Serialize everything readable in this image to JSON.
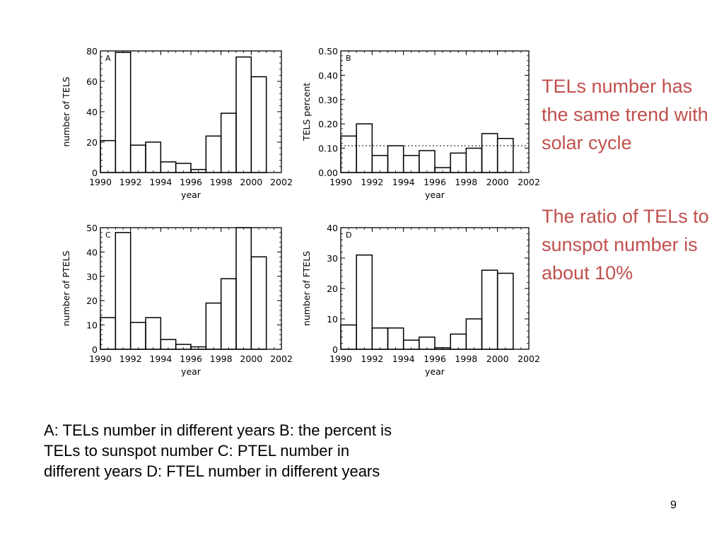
{
  "chart_data": [
    {
      "type": "bar",
      "panel": "A",
      "x": [
        1990.5,
        1991.5,
        1992.5,
        1993.5,
        1994.5,
        1995.5,
        1996.5,
        1997.5,
        1998.5,
        1999.5,
        2000.5,
        2001.5
      ],
      "values": [
        21,
        79,
        18,
        20,
        7,
        6,
        2,
        24,
        39,
        76,
        63,
        null
      ],
      "ylabel": "number of TELS",
      "xlabel": "year",
      "xlim": [
        1990,
        2002
      ],
      "ylim": [
        0,
        80
      ],
      "xticks": [
        "1990",
        "1992",
        "1994",
        "1996",
        "1998",
        "2000",
        "2002"
      ],
      "yticks": [
        "0",
        "20",
        "40",
        "60",
        "80"
      ],
      "grid": false
    },
    {
      "type": "bar",
      "panel": "B",
      "x": [
        1990.5,
        1991.5,
        1992.5,
        1993.5,
        1994.5,
        1995.5,
        1996.5,
        1997.5,
        1998.5,
        1999.5,
        2000.5,
        2001.5
      ],
      "values": [
        0.15,
        0.2,
        0.07,
        0.11,
        0.07,
        0.09,
        0.02,
        0.08,
        0.1,
        0.16,
        0.14,
        null
      ],
      "reference_line": 0.11,
      "ylabel": "TELS percent",
      "xlabel": "year",
      "xlim": [
        1990,
        2002
      ],
      "ylim": [
        0,
        0.5
      ],
      "xticks": [
        "1990",
        "1992",
        "1994",
        "1996",
        "1998",
        "2000",
        "2002"
      ],
      "yticks": [
        "0.00",
        "0.10",
        "0.20",
        "0.30",
        "0.40",
        "0.50"
      ],
      "grid": false
    },
    {
      "type": "bar",
      "panel": "C",
      "x": [
        1990.5,
        1991.5,
        1992.5,
        1993.5,
        1994.5,
        1995.5,
        1996.5,
        1997.5,
        1998.5,
        1999.5,
        2000.5,
        2001.5
      ],
      "values": [
        13,
        48,
        11,
        13,
        4,
        2,
        1,
        19,
        29,
        50,
        38,
        null
      ],
      "ylabel": "number of PTELS",
      "xlabel": "year",
      "xlim": [
        1990,
        2002
      ],
      "ylim": [
        0,
        50
      ],
      "xticks": [
        "1990",
        "1992",
        "1994",
        "1996",
        "1998",
        "2000",
        "2002"
      ],
      "yticks": [
        "0",
        "10",
        "20",
        "30",
        "40",
        "50"
      ],
      "grid": false
    },
    {
      "type": "bar",
      "panel": "D",
      "x": [
        1990.5,
        1991.5,
        1992.5,
        1993.5,
        1994.5,
        1995.5,
        1996.5,
        1997.5,
        1998.5,
        1999.5,
        2000.5,
        2001.5
      ],
      "values": [
        8,
        31,
        7,
        7,
        3,
        4,
        0.5,
        5,
        10,
        26,
        25,
        null
      ],
      "ylabel": "number of FTELS",
      "xlabel": "year",
      "xlim": [
        1990,
        2002
      ],
      "ylim": [
        0,
        40
      ],
      "xticks": [
        "1990",
        "1992",
        "1994",
        "1996",
        "1998",
        "2000",
        "2002"
      ],
      "yticks": [
        "0",
        "10",
        "20",
        "30",
        "40"
      ],
      "grid": false
    }
  ],
  "side_notes": [
    "TELs number has the same trend with solar cycle",
    "The ratio of TELs to sunspot number is about 10%"
  ],
  "caption_lines": [
    "A: TELs number in different years  B: the percent is",
    "TELs to sunspot number  C: PTEL number in",
    "different years  D: FTEL number in different years"
  ],
  "page_number": "9",
  "colors": {
    "note_text": "#c0504d",
    "axis": "#000000"
  }
}
